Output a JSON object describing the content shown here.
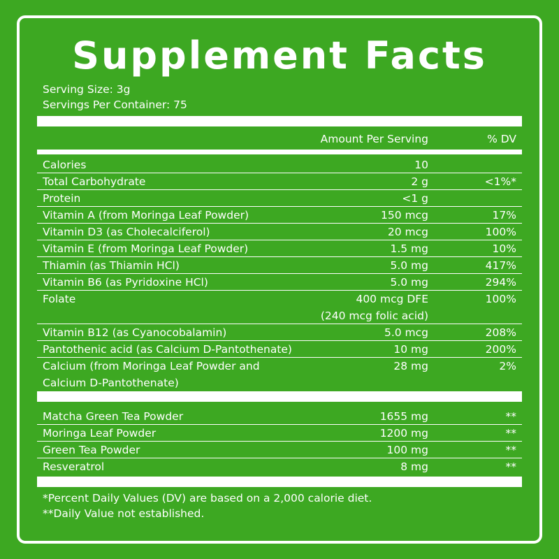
{
  "title": "Supplement Facts",
  "serving_size": "Serving Size: 3g",
  "servings_per_container": "Servings Per Container: 75",
  "header": {
    "amount": "Amount Per Serving",
    "dv": "% DV"
  },
  "nutrients": [
    {
      "name": "Calories",
      "amount": "10",
      "dv": ""
    },
    {
      "name": "Total Carbohydrate",
      "amount": "2 g",
      "dv": "<1%*"
    },
    {
      "name": "Protein",
      "amount": "<1 g",
      "dv": ""
    },
    {
      "name": "Vitamin A (from Moringa Leaf Powder)",
      "amount": "150 mcg",
      "dv": "17%"
    },
    {
      "name": "Vitamin D3 (as Cholecalciferol)",
      "amount": "20 mcg",
      "dv": "100%"
    },
    {
      "name": "Vitamin E (from Moringa Leaf Powder)",
      "amount": "1.5 mg",
      "dv": "10%"
    },
    {
      "name": "Thiamin (as Thiamin HCl)",
      "amount": "5.0 mg",
      "dv": "417%"
    },
    {
      "name": "Vitamin B6 (as Pyridoxine HCl)",
      "amount": "5.0 mg",
      "dv": "294%"
    },
    {
      "name": "Folate",
      "amount": "400 mcg DFE",
      "amount_line2": "(240 mcg folic acid)",
      "dv": "100%"
    },
    {
      "name": "Vitamin B12 (as Cyanocobalamin)",
      "amount": "5.0 mcg",
      "dv": "208%"
    },
    {
      "name": "Pantothenic acid (as Calcium D-Pantothenate)",
      "amount": "10 mg",
      "dv": "200%"
    },
    {
      "name": "Calcium (from Moringa Leaf Powder and",
      "name_line2": "Calcium D-Pantothenate)",
      "amount": "28 mg",
      "dv": "2%"
    }
  ],
  "blend": [
    {
      "name": "Matcha Green Tea Powder",
      "amount": "1655 mg",
      "dv": "**"
    },
    {
      "name": "Moringa Leaf Powder",
      "amount": "1200 mg",
      "dv": "**"
    },
    {
      "name": "Green Tea Powder",
      "amount": "100 mg",
      "dv": "**"
    },
    {
      "name": "Resveratrol",
      "amount": "8 mg",
      "dv": "**"
    }
  ],
  "footnotes": {
    "dv_note": "*Percent Daily Values (DV) are based on a 2,000 calorie diet.",
    "not_established": "**Daily Value not established."
  },
  "colors": {
    "background": "#3da822",
    "text": "#ffffff"
  }
}
